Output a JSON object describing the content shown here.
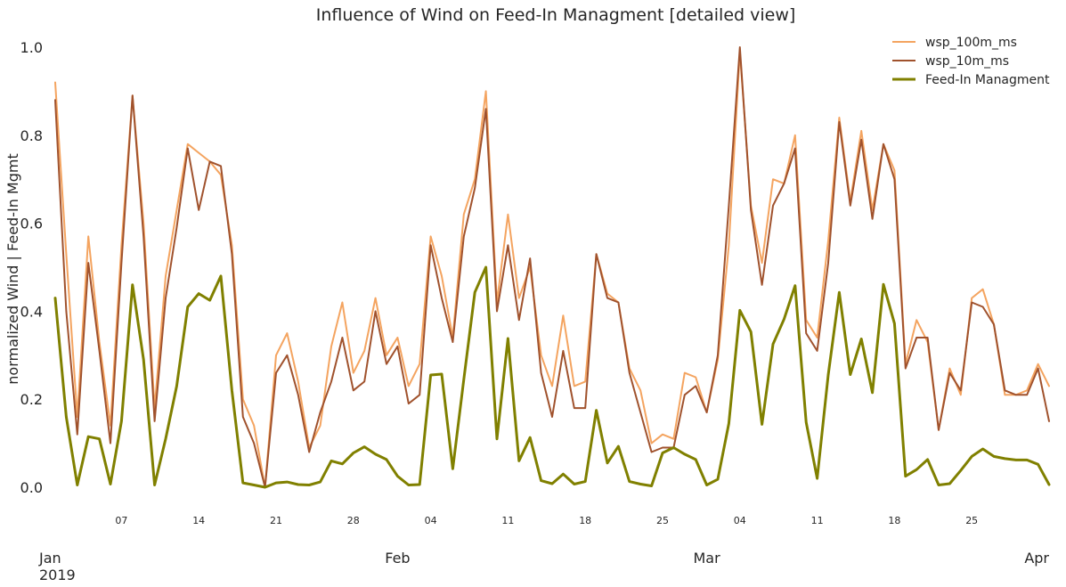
{
  "chart_data": {
    "type": "line",
    "title": "Influence of Wind on Feed-In Managment [detailed view]",
    "xlabel": "",
    "ylabel": "normalized Wind | Feed-In Mgmt",
    "ylim": [
      -0.08,
      1.05
    ],
    "yticks": [
      "0.0",
      "0.2",
      "0.4",
      "0.6",
      "0.8",
      "1.0"
    ],
    "x_range": [
      "2019-01-01",
      "2019-04-01"
    ],
    "x_major_ticks": [
      {
        "date": "2019-01-01",
        "label": "Jan",
        "sublabel": "2019"
      },
      {
        "date": "2019-02-01",
        "label": "Feb",
        "sublabel": ""
      },
      {
        "date": "2019-03-01",
        "label": "Mar",
        "sublabel": ""
      },
      {
        "date": "2019-04-01",
        "label": "Apr",
        "sublabel": ""
      }
    ],
    "x_minor_ticks": [
      {
        "date": "2019-01-07",
        "label": "07"
      },
      {
        "date": "2019-01-14",
        "label": "14"
      },
      {
        "date": "2019-01-21",
        "label": "21"
      },
      {
        "date": "2019-01-28",
        "label": "28"
      },
      {
        "date": "2019-02-04",
        "label": "04"
      },
      {
        "date": "2019-02-11",
        "label": "11"
      },
      {
        "date": "2019-02-18",
        "label": "18"
      },
      {
        "date": "2019-02-25",
        "label": "25"
      },
      {
        "date": "2019-03-04",
        "label": "04"
      },
      {
        "date": "2019-03-11",
        "label": "11"
      },
      {
        "date": "2019-03-18",
        "label": "18"
      },
      {
        "date": "2019-03-25",
        "label": "25"
      }
    ],
    "grid": false,
    "legend_position": "top-right",
    "series": [
      {
        "name": "wsp_100m_ms",
        "color": "#f4a460",
        "x": [
          "2019-01-01",
          "2019-01-02",
          "2019-01-03",
          "2019-01-04",
          "2019-01-05",
          "2019-01-06",
          "2019-01-07",
          "2019-01-08",
          "2019-01-09",
          "2019-01-10",
          "2019-01-11",
          "2019-01-12",
          "2019-01-13",
          "2019-01-14",
          "2019-01-15",
          "2019-01-16",
          "2019-01-17",
          "2019-01-18",
          "2019-01-19",
          "2019-01-20",
          "2019-01-21",
          "2019-01-22",
          "2019-01-23",
          "2019-01-24",
          "2019-01-25",
          "2019-01-26",
          "2019-01-27",
          "2019-01-28",
          "2019-01-29",
          "2019-01-30",
          "2019-01-31",
          "2019-02-01",
          "2019-02-02",
          "2019-02-03",
          "2019-02-04",
          "2019-02-05",
          "2019-02-06",
          "2019-02-07",
          "2019-02-08",
          "2019-02-09",
          "2019-02-10",
          "2019-02-11",
          "2019-02-12",
          "2019-02-13",
          "2019-02-14",
          "2019-02-15",
          "2019-02-16",
          "2019-02-17",
          "2019-02-18",
          "2019-02-19",
          "2019-02-20",
          "2019-02-21",
          "2019-02-22",
          "2019-02-23",
          "2019-02-24",
          "2019-02-25",
          "2019-02-26",
          "2019-02-27",
          "2019-02-28",
          "2019-03-01",
          "2019-03-02",
          "2019-03-03",
          "2019-03-04",
          "2019-03-05",
          "2019-03-06",
          "2019-03-07",
          "2019-03-08",
          "2019-03-09",
          "2019-03-10",
          "2019-03-11",
          "2019-03-12",
          "2019-03-13",
          "2019-03-14",
          "2019-03-15",
          "2019-03-16",
          "2019-03-17",
          "2019-03-18",
          "2019-03-19",
          "2019-03-20",
          "2019-03-21",
          "2019-03-22",
          "2019-03-23",
          "2019-03-24",
          "2019-03-25",
          "2019-03-26",
          "2019-03-27",
          "2019-03-28",
          "2019-03-29",
          "2019-03-30",
          "2019-03-31",
          "2019-04-01"
        ],
        "y": [
          0.92,
          0.53,
          0.16,
          0.57,
          0.33,
          0.14,
          0.55,
          0.89,
          0.6,
          0.18,
          0.48,
          0.63,
          0.78,
          0.76,
          0.74,
          0.71,
          0.55,
          0.2,
          0.14,
          0.0,
          0.3,
          0.35,
          0.24,
          0.09,
          0.14,
          0.32,
          0.42,
          0.26,
          0.31,
          0.43,
          0.3,
          0.34,
          0.23,
          0.28,
          0.57,
          0.48,
          0.34,
          0.62,
          0.7,
          0.9,
          0.42,
          0.62,
          0.43,
          0.5,
          0.3,
          0.23,
          0.39,
          0.23,
          0.24,
          0.53,
          0.44,
          0.42,
          0.27,
          0.22,
          0.1,
          0.12,
          0.11,
          0.26,
          0.25,
          0.17,
          0.29,
          0.55,
          0.99,
          0.64,
          0.51,
          0.7,
          0.69,
          0.8,
          0.38,
          0.34,
          0.56,
          0.84,
          0.65,
          0.81,
          0.63,
          0.78,
          0.72,
          0.28,
          0.38,
          0.33,
          0.13,
          0.27,
          0.21,
          0.43,
          0.45,
          0.37,
          0.21,
          0.21,
          0.22,
          0.28,
          0.23
        ]
      },
      {
        "name": "wsp_10m_ms",
        "color": "#a0522d",
        "x": [
          "2019-01-01",
          "2019-01-02",
          "2019-01-03",
          "2019-01-04",
          "2019-01-05",
          "2019-01-06",
          "2019-01-07",
          "2019-01-08",
          "2019-01-09",
          "2019-01-10",
          "2019-01-11",
          "2019-01-12",
          "2019-01-13",
          "2019-01-14",
          "2019-01-15",
          "2019-01-16",
          "2019-01-17",
          "2019-01-18",
          "2019-01-19",
          "2019-01-20",
          "2019-01-21",
          "2019-01-22",
          "2019-01-23",
          "2019-01-24",
          "2019-01-25",
          "2019-01-26",
          "2019-01-27",
          "2019-01-28",
          "2019-01-29",
          "2019-01-30",
          "2019-01-31",
          "2019-02-01",
          "2019-02-02",
          "2019-02-03",
          "2019-02-04",
          "2019-02-05",
          "2019-02-06",
          "2019-02-07",
          "2019-02-08",
          "2019-02-09",
          "2019-02-10",
          "2019-02-11",
          "2019-02-12",
          "2019-02-13",
          "2019-02-14",
          "2019-02-15",
          "2019-02-16",
          "2019-02-17",
          "2019-02-18",
          "2019-02-19",
          "2019-02-20",
          "2019-02-21",
          "2019-02-22",
          "2019-02-23",
          "2019-02-24",
          "2019-02-25",
          "2019-02-26",
          "2019-02-27",
          "2019-02-28",
          "2019-03-01",
          "2019-03-02",
          "2019-03-03",
          "2019-03-04",
          "2019-03-05",
          "2019-03-06",
          "2019-03-07",
          "2019-03-08",
          "2019-03-09",
          "2019-03-10",
          "2019-03-11",
          "2019-03-12",
          "2019-03-13",
          "2019-03-14",
          "2019-03-15",
          "2019-03-16",
          "2019-03-17",
          "2019-03-18",
          "2019-03-19",
          "2019-03-20",
          "2019-03-21",
          "2019-03-22",
          "2019-03-23",
          "2019-03-24",
          "2019-03-25",
          "2019-03-26",
          "2019-03-27",
          "2019-03-28",
          "2019-03-29",
          "2019-03-30",
          "2019-03-31",
          "2019-04-01"
        ],
        "y": [
          0.88,
          0.4,
          0.12,
          0.51,
          0.31,
          0.1,
          0.51,
          0.89,
          0.57,
          0.15,
          0.43,
          0.59,
          0.77,
          0.63,
          0.74,
          0.73,
          0.53,
          0.16,
          0.1,
          0.0,
          0.26,
          0.3,
          0.21,
          0.08,
          0.17,
          0.24,
          0.34,
          0.22,
          0.24,
          0.4,
          0.28,
          0.32,
          0.19,
          0.21,
          0.55,
          0.43,
          0.33,
          0.57,
          0.68,
          0.86,
          0.4,
          0.55,
          0.38,
          0.52,
          0.26,
          0.16,
          0.31,
          0.18,
          0.18,
          0.53,
          0.43,
          0.42,
          0.26,
          0.17,
          0.08,
          0.09,
          0.09,
          0.21,
          0.23,
          0.17,
          0.3,
          0.64,
          1.0,
          0.63,
          0.46,
          0.64,
          0.69,
          0.77,
          0.35,
          0.31,
          0.51,
          0.83,
          0.64,
          0.79,
          0.61,
          0.78,
          0.7,
          0.27,
          0.34,
          0.34,
          0.13,
          0.26,
          0.22,
          0.42,
          0.41,
          0.37,
          0.22,
          0.21,
          0.21,
          0.27,
          0.15
        ]
      },
      {
        "name": "Feed-In Managment",
        "color": "#808000",
        "x": [
          "2019-01-01",
          "2019-01-02",
          "2019-01-03",
          "2019-01-04",
          "2019-01-05",
          "2019-01-06",
          "2019-01-07",
          "2019-01-08",
          "2019-01-09",
          "2019-01-10",
          "2019-01-11",
          "2019-01-12",
          "2019-01-13",
          "2019-01-14",
          "2019-01-15",
          "2019-01-16",
          "2019-01-17",
          "2019-01-18",
          "2019-01-19",
          "2019-01-20",
          "2019-01-21",
          "2019-01-22",
          "2019-01-23",
          "2019-01-24",
          "2019-01-25",
          "2019-01-26",
          "2019-01-27",
          "2019-01-28",
          "2019-01-29",
          "2019-01-30",
          "2019-01-31",
          "2019-02-01",
          "2019-02-02",
          "2019-02-03",
          "2019-02-04",
          "2019-02-05",
          "2019-02-06",
          "2019-02-07",
          "2019-02-08",
          "2019-02-09",
          "2019-02-10",
          "2019-02-11",
          "2019-02-12",
          "2019-02-13",
          "2019-02-14",
          "2019-02-15",
          "2019-02-16",
          "2019-02-17",
          "2019-02-18",
          "2019-02-19",
          "2019-02-20",
          "2019-02-21",
          "2019-02-22",
          "2019-02-23",
          "2019-02-24",
          "2019-02-25",
          "2019-02-26",
          "2019-02-27",
          "2019-02-28",
          "2019-03-01",
          "2019-03-02",
          "2019-03-03",
          "2019-03-04",
          "2019-03-05",
          "2019-03-06",
          "2019-03-07",
          "2019-03-08",
          "2019-03-09",
          "2019-03-10",
          "2019-03-11",
          "2019-03-12",
          "2019-03-13",
          "2019-03-14",
          "2019-03-15",
          "2019-03-16",
          "2019-03-17",
          "2019-03-18",
          "2019-03-19",
          "2019-03-20",
          "2019-03-21",
          "2019-03-22",
          "2019-03-23",
          "2019-03-24",
          "2019-03-25",
          "2019-03-26",
          "2019-03-27",
          "2019-03-28",
          "2019-03-29",
          "2019-03-30",
          "2019-03-31",
          "2019-04-01"
        ],
        "y": [
          0.43,
          0.16,
          0.005,
          0.115,
          0.11,
          0.007,
          0.15,
          0.46,
          0.29,
          0.005,
          0.11,
          0.23,
          0.41,
          0.44,
          0.425,
          0.48,
          0.22,
          0.01,
          0.005,
          0.0,
          0.01,
          0.012,
          0.006,
          0.005,
          0.012,
          0.06,
          0.053,
          0.078,
          0.092,
          0.075,
          0.063,
          0.025,
          0.005,
          0.006,
          0.255,
          0.257,
          0.042,
          0.245,
          0.443,
          0.5,
          0.11,
          0.338,
          0.06,
          0.113,
          0.015,
          0.008,
          0.03,
          0.007,
          0.013,
          0.175,
          0.055,
          0.093,
          0.013,
          0.007,
          0.003,
          0.078,
          0.09,
          0.075,
          0.063,
          0.005,
          0.018,
          0.145,
          0.402,
          0.353,
          0.143,
          0.325,
          0.382,
          0.458,
          0.148,
          0.02,
          0.255,
          0.443,
          0.256,
          0.337,
          0.215,
          0.461,
          0.372,
          0.025,
          0.04,
          0.063,
          0.005,
          0.008,
          0.038,
          0.07,
          0.087,
          0.07,
          0.065,
          0.062,
          0.062,
          0.052,
          0.006
        ]
      }
    ]
  }
}
